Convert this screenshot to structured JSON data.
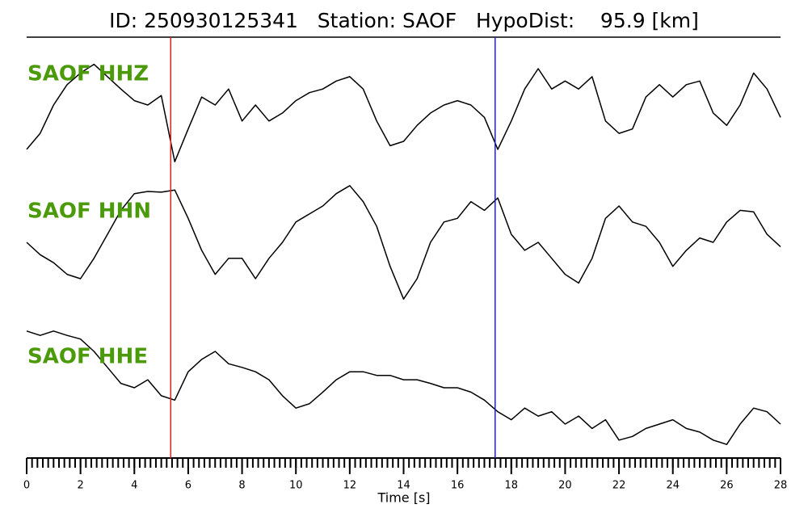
{
  "chart_data": {
    "type": "line",
    "title": "ID: 250930125341   Station: SAOF   HypoDist:    95.9 [km]",
    "xlabel": "Time [s]",
    "x": [
      0,
      0.5,
      1,
      1.5,
      2,
      2.5,
      3,
      3.5,
      4,
      4.5,
      5,
      5.5,
      6,
      6.5,
      7,
      7.5,
      8,
      8.5,
      9,
      9.5,
      10,
      10.5,
      11,
      11.5,
      12,
      12.5,
      13,
      13.5,
      14,
      14.5,
      15,
      15.5,
      16,
      16.5,
      17,
      17.5,
      18,
      18.5,
      19,
      19.5,
      20,
      20.5,
      21,
      21.5,
      22,
      22.5,
      23,
      23.5,
      24,
      24.5,
      25,
      25.5,
      26,
      26.5,
      27,
      27.5,
      28
    ],
    "series": [
      {
        "name": "SAOF HHZ",
        "color": "#000000",
        "label_color": "#4a9a0a",
        "values": [
          -0.61,
          -0.39,
          0,
          0.28,
          0.44,
          0.56,
          0.39,
          0.22,
          0.06,
          0,
          0.13,
          -0.78,
          -0.33,
          0.11,
          0,
          0.22,
          -0.22,
          0,
          -0.22,
          -0.11,
          0.06,
          0.17,
          0.22,
          0.33,
          0.39,
          0.22,
          -0.22,
          -0.56,
          -0.5,
          -0.28,
          -0.11,
          0,
          0.06,
          0,
          -0.17,
          -0.61,
          -0.22,
          0.22,
          0.5,
          0.22,
          0.33,
          0.22,
          0.39,
          -0.22,
          -0.39,
          -0.33,
          0.11,
          0.28,
          0.11,
          0.28,
          0.33,
          -0.11,
          -0.28,
          0,
          0.44,
          0.22,
          -0.17
        ]
      },
      {
        "name": "SAOF HHN",
        "color": "#000000",
        "label_color": "#4a9a0a",
        "values": [
          0,
          -0.17,
          -0.28,
          -0.44,
          -0.5,
          -0.22,
          0.11,
          0.44,
          0.67,
          0.7,
          0.69,
          0.72,
          0.33,
          -0.11,
          -0.44,
          -0.22,
          -0.22,
          -0.5,
          -0.22,
          0,
          0.28,
          0.39,
          0.5,
          0.67,
          0.78,
          0.56,
          0.22,
          -0.33,
          -0.78,
          -0.5,
          0,
          0.28,
          0.33,
          0.56,
          0.44,
          0.61,
          0.11,
          -0.11,
          0,
          -0.22,
          -0.44,
          -0.56,
          -0.22,
          0.33,
          0.5,
          0.28,
          0.22,
          0,
          -0.33,
          -0.11,
          0.06,
          0,
          0.28,
          0.44,
          0.42,
          0.11,
          -0.06
        ]
      },
      {
        "name": "SAOF HHE",
        "color": "#000000",
        "label_color": "#4a9a0a",
        "values": [
          0.78,
          0.72,
          0.78,
          0.72,
          0.67,
          0.5,
          0.28,
          0.06,
          0,
          0.11,
          -0.11,
          -0.17,
          0.22,
          0.39,
          0.5,
          0.33,
          0.28,
          0.22,
          0.11,
          -0.11,
          -0.28,
          -0.22,
          -0.06,
          0.11,
          0.22,
          0.22,
          0.17,
          0.17,
          0.11,
          0.11,
          0.06,
          0,
          0,
          -0.06,
          -0.17,
          -0.33,
          -0.44,
          -0.28,
          -0.39,
          -0.33,
          -0.5,
          -0.39,
          -0.56,
          -0.44,
          -0.72,
          -0.67,
          -0.56,
          -0.5,
          -0.44,
          -0.56,
          -0.61,
          -0.72,
          -0.78,
          -0.5,
          -0.28,
          -0.33,
          -0.5
        ]
      }
    ],
    "ylim": [
      -1,
      1
    ],
    "xlim": [
      0,
      28
    ],
    "xticks": [
      0,
      2,
      4,
      6,
      8,
      10,
      12,
      14,
      16,
      18,
      20,
      22,
      24,
      26,
      28
    ],
    "xminor_step": 0.2,
    "picks": [
      {
        "x": 5.35,
        "color": "#e02020"
      },
      {
        "x": 17.4,
        "color": "#2020c0"
      }
    ]
  }
}
